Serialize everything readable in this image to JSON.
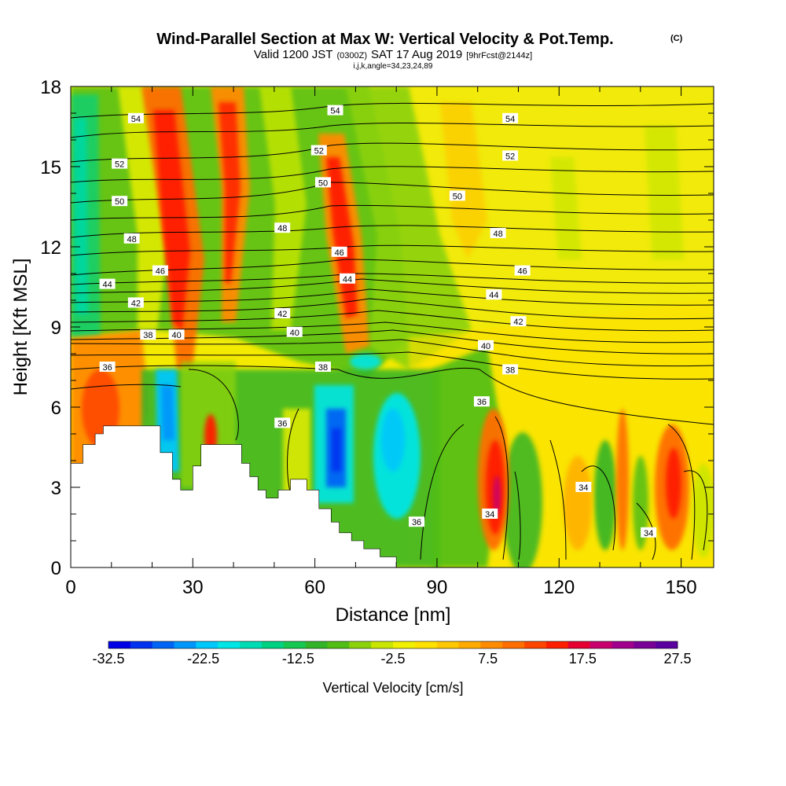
{
  "title": {
    "main": "Wind-Parallel Section at Max W: Vertical Velocity & Pot.Temp.",
    "main_tag": "(C)",
    "valid_prefix": "Valid 1200 JST",
    "valid_utc": "(0300Z)",
    "valid_date": "SAT 17 Aug 2019",
    "valid_fcst": "[9hrFcst@2144z]",
    "params": "i,j,k,angle=34,23,24,89"
  },
  "chart_data": {
    "type": "heatmap",
    "title": "Wind-Parallel Section at Max W: Vertical Velocity & Pot.Temp.",
    "xlabel": "Distance [nm]",
    "ylabel": "Height [Kft MSL]",
    "xlim": [
      0,
      158
    ],
    "ylim": [
      0,
      18
    ],
    "x_ticks": [
      0,
      30,
      60,
      90,
      120,
      150
    ],
    "x_tick_labels": [
      "0",
      "30",
      "60",
      "90",
      "120",
      "150"
    ],
    "y_ticks": [
      0,
      3,
      6,
      9,
      12,
      15,
      18
    ],
    "y_tick_labels": [
      "0",
      "3",
      "6",
      "9",
      "12",
      "15",
      "18"
    ],
    "colorbar": {
      "label": "Vertical Velocity [cm/s]",
      "tick_labels": [
        "-32.5",
        "-22.5",
        "-12.5",
        "-2.5",
        "7.5",
        "17.5",
        "27.5"
      ],
      "colors": [
        "#0000e6",
        "#0032f0",
        "#0064f5",
        "#0096fa",
        "#00c8fa",
        "#00e6e6",
        "#00dcb4",
        "#00d282",
        "#14c850",
        "#32b428",
        "#50be14",
        "#8cd20a",
        "#c8e600",
        "#f0f000",
        "#ffe100",
        "#ffc800",
        "#ffaa00",
        "#ff8c00",
        "#ff6e00",
        "#ff4600",
        "#ff1e00",
        "#e60032",
        "#c8006e",
        "#a0008c",
        "#780096",
        "#5a00a0"
      ]
    },
    "velocity_features": [
      {
        "x": 5,
        "y0": 4.5,
        "y1": 8.5,
        "w_cm_s": 18
      },
      {
        "x": 3,
        "y0": 9,
        "y1": 18,
        "w_cm_s": -20
      },
      {
        "x": 25,
        "y_bottom": 4,
        "y_top": 18,
        "w_cm_s": 22
      },
      {
        "x": 22,
        "y0": 3.5,
        "y1": 7,
        "w_cm_s": -24
      },
      {
        "x": 36,
        "y_bottom": 4.5,
        "y_top": 18,
        "w_cm_s": 17
      },
      {
        "x": 46,
        "y_bottom": 8,
        "y_top": 18,
        "w_cm_s": -10
      },
      {
        "x": 65,
        "y_bottom": 7.5,
        "y_top": 15,
        "w_cm_s": 20
      },
      {
        "x": 64,
        "y0": 3,
        "y1": 6.5,
        "w_cm_s": -30
      },
      {
        "x": 78,
        "y0": 2.5,
        "y1": 7,
        "w_cm_s": -24
      },
      {
        "x": 103,
        "y0": 0.5,
        "y1": 5.5,
        "w_cm_s": 23
      },
      {
        "x": 122,
        "y0": 0.5,
        "y1": 5.5,
        "w_cm_s": 10
      },
      {
        "x": 128,
        "y0": 1,
        "y1": 5,
        "w_cm_s": -10
      },
      {
        "x": 136,
        "y0": 1,
        "y1": 6,
        "w_cm_s": 14
      },
      {
        "x": 149,
        "y0": 1,
        "y1": 5.5,
        "w_cm_s": 22
      }
    ],
    "theta_contour_labels": [
      {
        "value": "54",
        "x": 16,
        "y": 16.8
      },
      {
        "value": "52",
        "x": 12,
        "y": 15.1
      },
      {
        "value": "50",
        "x": 12,
        "y": 13.7
      },
      {
        "value": "48",
        "x": 15,
        "y": 12.3
      },
      {
        "value": "46",
        "x": 22,
        "y": 11.1
      },
      {
        "value": "44",
        "x": 9,
        "y": 10.6
      },
      {
        "value": "42",
        "x": 16,
        "y": 9.9
      },
      {
        "value": "40",
        "x": 26,
        "y": 8.7
      },
      {
        "value": "38",
        "x": 19,
        "y": 8.7
      },
      {
        "value": "36",
        "x": 9,
        "y": 7.5
      },
      {
        "value": "54",
        "x": 65,
        "y": 17.1
      },
      {
        "value": "52",
        "x": 61,
        "y": 15.6
      },
      {
        "value": "50",
        "x": 62,
        "y": 14.4
      },
      {
        "value": "48",
        "x": 52,
        "y": 12.7
      },
      {
        "value": "46",
        "x": 66,
        "y": 11.8
      },
      {
        "value": "44",
        "x": 68,
        "y": 10.8
      },
      {
        "value": "42",
        "x": 52,
        "y": 9.5
      },
      {
        "value": "40",
        "x": 55,
        "y": 8.8
      },
      {
        "value": "38",
        "x": 62,
        "y": 7.5
      },
      {
        "value": "36",
        "x": 52,
        "y": 5.4
      },
      {
        "value": "54",
        "x": 108,
        "y": 16.8
      },
      {
        "value": "52",
        "x": 108,
        "y": 15.4
      },
      {
        "value": "50",
        "x": 95,
        "y": 13.9
      },
      {
        "value": "48",
        "x": 105,
        "y": 12.5
      },
      {
        "value": "46",
        "x": 111,
        "y": 11.1
      },
      {
        "value": "44",
        "x": 104,
        "y": 10.2
      },
      {
        "value": "42",
        "x": 110,
        "y": 9.2
      },
      {
        "value": "40",
        "x": 102,
        "y": 8.3
      },
      {
        "value": "38",
        "x": 108,
        "y": 7.4
      },
      {
        "value": "36",
        "x": 101,
        "y": 6.2
      },
      {
        "value": "36",
        "x": 85,
        "y": 1.7
      },
      {
        "value": "34",
        "x": 103,
        "y": 2.0
      },
      {
        "value": "34",
        "x": 126,
        "y": 3.0
      },
      {
        "value": "34",
        "x": 142,
        "y": 1.3
      }
    ],
    "terrain_profile": [
      [
        0,
        3.9
      ],
      [
        3,
        3.9
      ],
      [
        3,
        4.6
      ],
      [
        6,
        4.6
      ],
      [
        6,
        5.0
      ],
      [
        8,
        5.0
      ],
      [
        8,
        5.3
      ],
      [
        22,
        5.3
      ],
      [
        22,
        4.3
      ],
      [
        25,
        4.3
      ],
      [
        25,
        3.3
      ],
      [
        27,
        3.3
      ],
      [
        27,
        2.9
      ],
      [
        30,
        2.9
      ],
      [
        30,
        3.8
      ],
      [
        32,
        3.8
      ],
      [
        32,
        4.6
      ],
      [
        42,
        4.6
      ],
      [
        42,
        3.9
      ],
      [
        44,
        3.9
      ],
      [
        44,
        3.4
      ],
      [
        46,
        3.4
      ],
      [
        46,
        2.9
      ],
      [
        48,
        2.9
      ],
      [
        48,
        2.6
      ],
      [
        51,
        2.6
      ],
      [
        51,
        2.9
      ],
      [
        54,
        2.9
      ],
      [
        54,
        3.3
      ],
      [
        58,
        3.3
      ],
      [
        58,
        2.9
      ],
      [
        61,
        2.9
      ],
      [
        61,
        2.2
      ],
      [
        64,
        2.2
      ],
      [
        64,
        1.7
      ],
      [
        66,
        1.7
      ],
      [
        66,
        1.3
      ],
      [
        69,
        1.3
      ],
      [
        69,
        1.0
      ],
      [
        72,
        1.0
      ],
      [
        72,
        0.7
      ],
      [
        76,
        0.7
      ],
      [
        76,
        0.4
      ],
      [
        80,
        0.4
      ],
      [
        80,
        0
      ],
      [
        158,
        0
      ]
    ]
  }
}
